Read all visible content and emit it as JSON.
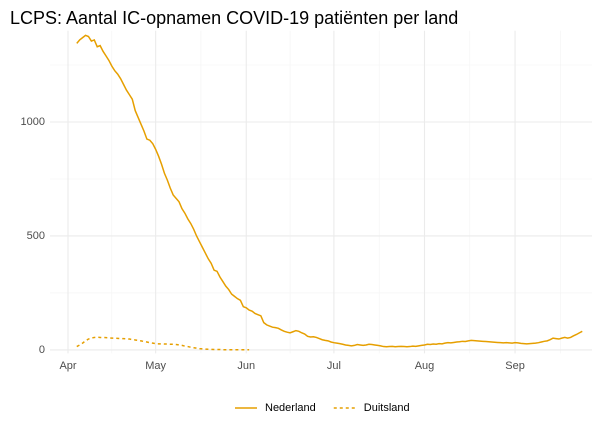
{
  "chart_data": {
    "type": "line",
    "title": "LCPS: Aantal IC-opnamen COVID-19 patiënten per land",
    "categories": [
      "Apr",
      null,
      null,
      null,
      null,
      null,
      null,
      null,
      null,
      null,
      null,
      null,
      null,
      null,
      null,
      null,
      null,
      null,
      null,
      null,
      null,
      null,
      null,
      null,
      null,
      null,
      null,
      null,
      null,
      null,
      "May",
      null,
      null,
      null,
      null,
      null,
      null,
      null,
      null,
      null,
      null,
      null,
      null,
      null,
      null,
      null,
      null,
      null,
      null,
      null,
      null,
      null,
      null,
      null,
      null,
      null,
      null,
      null,
      null,
      null,
      null,
      "Jun",
      null,
      null,
      null,
      null,
      null,
      null,
      null,
      null,
      null,
      null,
      null,
      null,
      null,
      null,
      null,
      null,
      null,
      null,
      null,
      null,
      null,
      null,
      null,
      null,
      null,
      null,
      null,
      null,
      null,
      "Jul",
      null,
      null,
      null,
      null,
      null,
      null,
      null,
      null,
      null,
      null,
      null,
      null,
      null,
      null,
      null,
      null,
      null,
      null,
      null,
      null,
      null,
      null,
      null,
      null,
      null,
      null,
      null,
      null,
      null,
      null,
      "Aug",
      null,
      null,
      null,
      null,
      null,
      null,
      null,
      null,
      null,
      null,
      null,
      null,
      null,
      null,
      null,
      null,
      null,
      null,
      null,
      null,
      null,
      null,
      null,
      null,
      null,
      null,
      null,
      null,
      null,
      null,
      "Sep",
      null,
      null,
      null,
      null,
      null,
      null,
      null,
      null,
      null,
      null,
      null,
      null,
      null,
      null,
      null,
      null,
      null,
      null,
      null,
      null,
      null,
      null,
      null
    ],
    "series": [
      {
        "name": "Nederland",
        "color": "#e69f00",
        "linestyle": "solid",
        "values": [
          null,
          null,
          null,
          1345,
          1360,
          1370,
          1380,
          1375,
          1355,
          1360,
          1330,
          1335,
          1310,
          1290,
          1270,
          1245,
          1225,
          1210,
          1190,
          1165,
          1140,
          1120,
          1100,
          1050,
          1020,
          990,
          960,
          925,
          920,
          905,
          880,
          850,
          815,
          775,
          745,
          710,
          680,
          665,
          650,
          620,
          600,
          575,
          555,
          530,
          500,
          475,
          450,
          425,
          400,
          380,
          350,
          345,
          320,
          300,
          280,
          265,
          245,
          235,
          225,
          218,
          190,
          185,
          175,
          170,
          160,
          155,
          150,
          120,
          110,
          105,
          100,
          98,
          95,
          88,
          82,
          78,
          75,
          80,
          85,
          82,
          75,
          70,
          60,
          57,
          58,
          55,
          50,
          45,
          42,
          40,
          35,
          32,
          30,
          28,
          25,
          22,
          20,
          18,
          20,
          24,
          22,
          20,
          22,
          25,
          24,
          22,
          20,
          18,
          15,
          14,
          15,
          16,
          14,
          15,
          16,
          15,
          14,
          15,
          17,
          16,
          18,
          20,
          22,
          25,
          24,
          26,
          25,
          28,
          27,
          30,
          32,
          31,
          33,
          35,
          36,
          38,
          37,
          40,
          42,
          41,
          40,
          39,
          38,
          37,
          36,
          35,
          34,
          33,
          32,
          31,
          32,
          31,
          30,
          32,
          31,
          29,
          28,
          27,
          28,
          29,
          30,
          32,
          35,
          38,
          40,
          45,
          52,
          50,
          48,
          52,
          55,
          52,
          55,
          62,
          68,
          75,
          82
        ]
      },
      {
        "name": "Duitsland",
        "color": "#e69f00",
        "linestyle": "dashed",
        "values": [
          null,
          null,
          null,
          15,
          22,
          30,
          40,
          48,
          52,
          55,
          56,
          55,
          55,
          54,
          53,
          52,
          52,
          51,
          50,
          50,
          49,
          48,
          46,
          44,
          42,
          40,
          37,
          35,
          32,
          30,
          28,
          27,
          27,
          26,
          26,
          25,
          25,
          24,
          22,
          20,
          17,
          15,
          12,
          10,
          8,
          6,
          5,
          4,
          3,
          3,
          2,
          2,
          2,
          1,
          1,
          1,
          1,
          1,
          1,
          1,
          1,
          1,
          1,
          null,
          null,
          null,
          null,
          null,
          null,
          null,
          null,
          null,
          null,
          null,
          null,
          null,
          null,
          null,
          null,
          null,
          null,
          null,
          null,
          null,
          null,
          null,
          null,
          null,
          null,
          null,
          null,
          null,
          null,
          null,
          null,
          null,
          null,
          null,
          null,
          null,
          null,
          null,
          null,
          null,
          null,
          null,
          null,
          null,
          null,
          null,
          null,
          null,
          null,
          null,
          null,
          null,
          null,
          null,
          null,
          null,
          null,
          null,
          null,
          null,
          null,
          null,
          null,
          null,
          null,
          null,
          null,
          null,
          null,
          null,
          null,
          null,
          null,
          null,
          null,
          null,
          null,
          null,
          null,
          null,
          null,
          null,
          null,
          null,
          null,
          null,
          null,
          null,
          null,
          null,
          null,
          null,
          null,
          null,
          null,
          null,
          null,
          null,
          null,
          null,
          null,
          null,
          null,
          null,
          null,
          null,
          null,
          null,
          null,
          null,
          null,
          null,
          null
        ]
      }
    ],
    "ylim": [
      -15,
      1400
    ],
    "yticks": [
      0,
      500,
      1000
    ],
    "grid": true,
    "legend": "bottom"
  }
}
